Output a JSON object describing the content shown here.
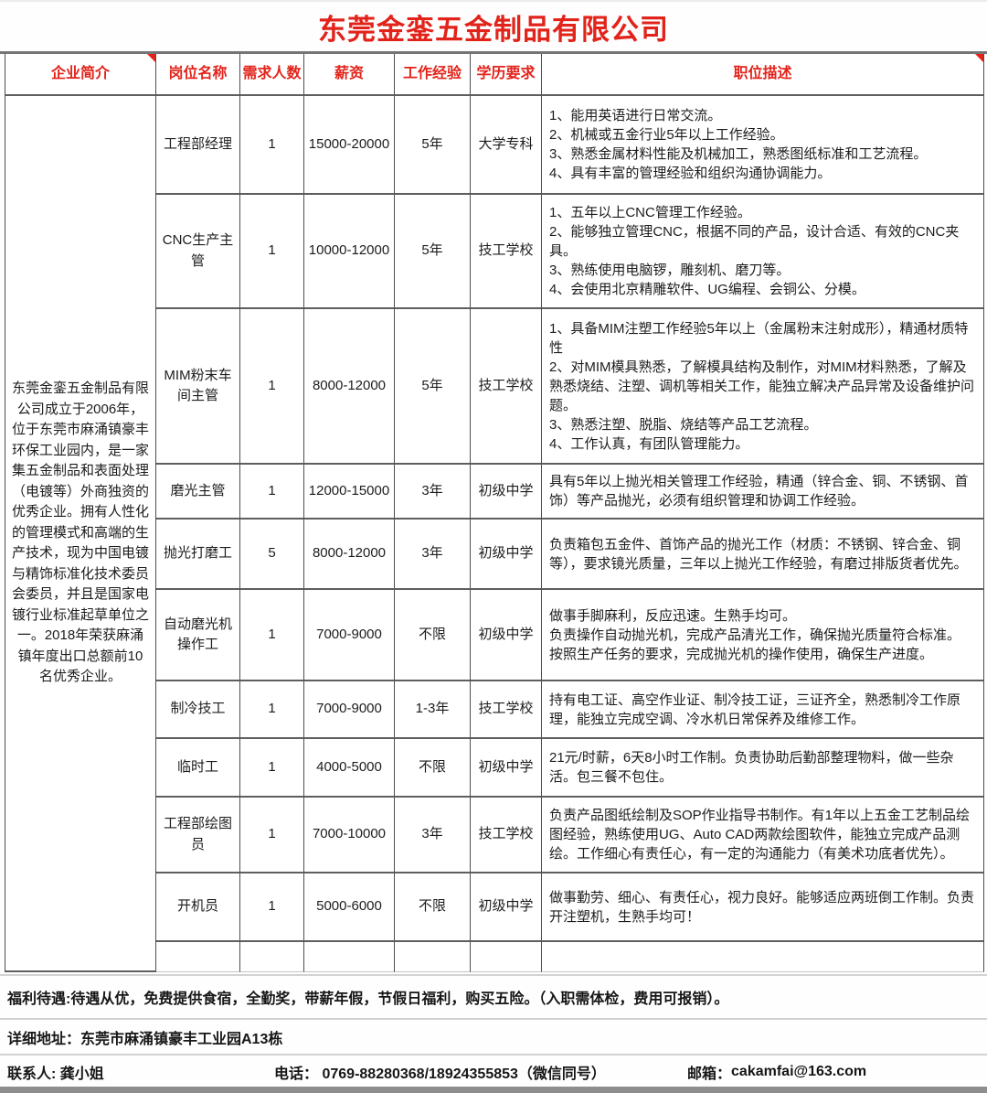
{
  "title": "东莞金銮五金制品有限公司",
  "colors": {
    "accent_red": "#e2231a",
    "body_text": "#1c1c1c",
    "grid_line": "#4d4d4d",
    "footer_separator": "#d2d2d0"
  },
  "table": {
    "headers": [
      "企业简介",
      "岗位名称",
      "需求人数",
      "薪资",
      "工作经验",
      "学历要求",
      "职位描述"
    ],
    "company_profile": "东莞金銮五金制品有限公司成立于2006年，位于东莞市麻涌镇豪丰环保工业园内，是一家集五金制品和表面处理（电镀等）外商独资的优秀企业。拥有人性化的管理模式和高端的生产技术，现为中国电镀与精饰标准化技术委员会委员，并且是国家电镀行业标准起草单位之一。2018年荣获麻涌镇年度出口总额前10名优秀企业。",
    "rows": [
      {
        "position": "工程部经理",
        "count": "1",
        "salary": "15000-20000",
        "experience": "5年",
        "education": "大学专科",
        "description": "1、能用英语进行日常交流。\n2、机械或五金行业5年以上工作经验。\n3、熟悉金属材料性能及机械加工，熟悉图纸标准和工艺流程。\n4、具有丰富的管理经验和组织沟通协调能力。"
      },
      {
        "position": "CNC生产主管",
        "count": "1",
        "salary": "10000-12000",
        "experience": "5年",
        "education": "技工学校",
        "description": "1、五年以上CNC管理工作经验。\n2、能够独立管理CNC，根据不同的产品，设计合适、有效的CNC夹具。\n3、熟练使用电脑锣，雕刻机、磨刀等。\n4、会使用北京精雕软件、UG编程、会铜公、分模。"
      },
      {
        "position": "MIM粉末车间主管",
        "count": "1",
        "salary": "8000-12000",
        "experience": "5年",
        "education": "技工学校",
        "description": "1、具备MIM注塑工作经验5年以上（金属粉末注射成形），精通材质特性\n2、对MIM模具熟悉，了解模具结构及制作，对MIM材料熟悉，了解及熟悉烧结、注塑、调机等相关工作，能独立解决产品异常及设备维护问题。\n3、熟悉注塑、脱脂、烧结等产品工艺流程。\n4、工作认真，有团队管理能力。"
      },
      {
        "position": "磨光主管",
        "count": "1",
        "salary": "12000-15000",
        "experience": "3年",
        "education": "初级中学",
        "description": "具有5年以上抛光相关管理工作经验，精通（锌合金、铜、不锈钢、首饰）等产品抛光，必须有组织管理和协调工作经验。"
      },
      {
        "position": "抛光打磨工",
        "count": "5",
        "salary": "8000-12000",
        "experience": "3年",
        "education": "初级中学",
        "description": "负责箱包五金件、首饰产品的抛光工作（材质：不锈钢、锌合金、铜等），要求镜光质量，三年以上抛光工作经验，有磨过排版货者优先。"
      },
      {
        "position": "自动磨光机操作工",
        "count": "1",
        "salary": "7000-9000",
        "experience": "不限",
        "education": "初级中学",
        "description": "做事手脚麻利，反应迅速。生熟手均可。\n负责操作自动抛光机，完成产品清光工作，确保抛光质量符合标准。\n按照生产任务的要求，完成抛光机的操作使用，确保生产进度。"
      },
      {
        "position": "制冷技工",
        "count": "1",
        "salary": "7000-9000",
        "experience": "1-3年",
        "education": "技工学校",
        "description": "持有电工证、高空作业证、制冷技工证，三证齐全，熟悉制冷工作原理，能独立完成空调、冷水机日常保养及维修工作。"
      },
      {
        "position": "临时工",
        "count": "1",
        "salary": "4000-5000",
        "experience": "不限",
        "education": "初级中学",
        "description": "21元/时薪，6天8小时工作制。负责协助后勤部整理物料，做一些杂活。包三餐不包住。"
      },
      {
        "position": "工程部绘图员",
        "count": "1",
        "salary": "7000-10000",
        "experience": "3年",
        "education": "技工学校",
        "description": "负责产品图纸绘制及SOP作业指导书制作。有1年以上五金工艺制品绘图经验，熟练使用UG、Auto CAD两款绘图软件，能独立完成产品测绘。工作细心有责任心，有一定的沟通能力（有美术功底者优先）。"
      },
      {
        "position": "开机员",
        "count": "1",
        "salary": "5000-6000",
        "experience": "不限",
        "education": "初级中学",
        "description": "做事勤劳、细心、有责任心，视力良好。能够适应两班倒工作制。负责开注塑机，生熟手均可！"
      }
    ]
  },
  "footer": {
    "welfare": "福利待遇:待遇从优，免费提供食宿，全勤奖，带薪年假，节假日福利，购买五险。（入职需体检，费用可报销）。",
    "address": "详细地址：东莞市麻涌镇豪丰工业园A13栋",
    "contact_label": "联系人: 龚小姐",
    "phone_label": "电话：",
    "phone_value": "0769-88280368/18924355853（微信同号）",
    "email_label": "邮箱：",
    "email_value": "cakamfai@163.com"
  }
}
